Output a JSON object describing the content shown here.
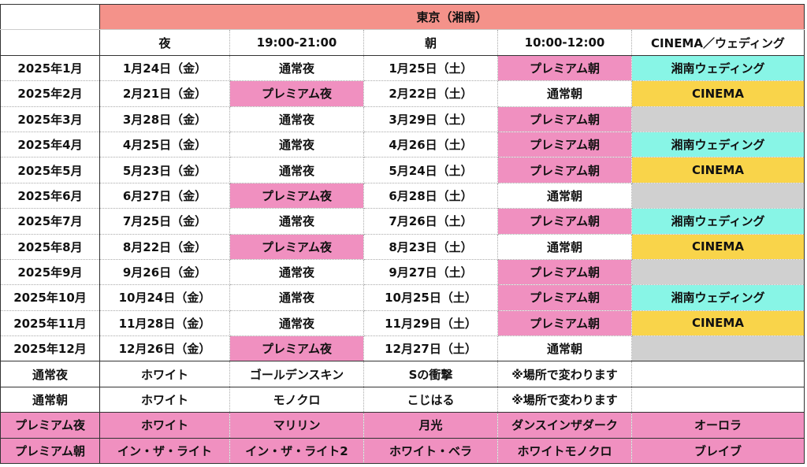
{
  "colors": {
    "header": "#F4928A",
    "premium": "#F090C0",
    "wedding": "#88F5E6",
    "cinema": "#F9D44A",
    "empty": "#D0D0D0",
    "white": "#FFFFFF"
  },
  "header": {
    "region": "東京（湘南）",
    "columns": [
      "",
      "夜",
      "19:00-21:00",
      "朝",
      "10:00-12:00",
      "CINEMA／ウェディング"
    ]
  },
  "rows": [
    [
      "2025年1月",
      "1月24日（金）",
      "通常夜",
      "1月25日（土）",
      "プレミアム朝",
      "湘南ウェディング"
    ],
    [
      "2025年2月",
      "2月21日（金）",
      "プレミアム夜",
      "2月22日（土）",
      "通常朝",
      "CINEMA"
    ],
    [
      "2025年3月",
      "3月28日（金）",
      "通常夜",
      "3月29日（土）",
      "プレミアム朝",
      ""
    ],
    [
      "2025年4月",
      "4月25日（金）",
      "通常夜",
      "4月26日（土）",
      "プレミアム朝",
      "湘南ウェディング"
    ],
    [
      "2025年5月",
      "5月23日（金）",
      "通常夜",
      "5月24日（土）",
      "プレミアム朝",
      "CINEMA"
    ],
    [
      "2025年6月",
      "6月27日（金）",
      "プレミアム夜",
      "6月28日（土）",
      "通常朝",
      ""
    ],
    [
      "2025年7月",
      "7月25日（金）",
      "通常夜",
      "7月26日（土）",
      "プレミアム朝",
      "湘南ウェディング"
    ],
    [
      "2025年8月",
      "8月22日（金）",
      "プレミアム夜",
      "8月23日（土）",
      "通常朝",
      "CINEMA"
    ],
    [
      "2025年9月",
      "9月26日（金）",
      "通常夜",
      "9月27日（土）",
      "プレミアム朝",
      ""
    ],
    [
      "2025年10月",
      "10月24日（金）",
      "通常夜",
      "10月25日（土）",
      "プレミアム朝",
      "湘南ウェディング"
    ],
    [
      "2025年11月",
      "11月28日（金）",
      "通常夜",
      "11月29日（土）",
      "プレミアム朝",
      "CINEMA"
    ],
    [
      "2025年12月",
      "12月26日（金）",
      "プレミアム夜",
      "12月27日（土）",
      "通常朝",
      ""
    ]
  ],
  "legend": [
    [
      "通常夜",
      "ホワイト",
      "ゴールデンスキン",
      "Sの衝撃",
      "※場所で変わります",
      ""
    ],
    [
      "通常朝",
      "ホワイト",
      "モノクロ",
      "こじはる",
      "※場所で変わります",
      ""
    ],
    [
      "プレミアム夜",
      "ホワイト",
      "マリリン",
      "月光",
      "ダンスインザダーク",
      "オーロラ"
    ],
    [
      "プレミアム朝",
      "イン・ザ・ライト",
      "イン・ザ・ライト2",
      "ホワイト・ベラ",
      "ホワイトモノクロ",
      "ブレイブ"
    ]
  ]
}
